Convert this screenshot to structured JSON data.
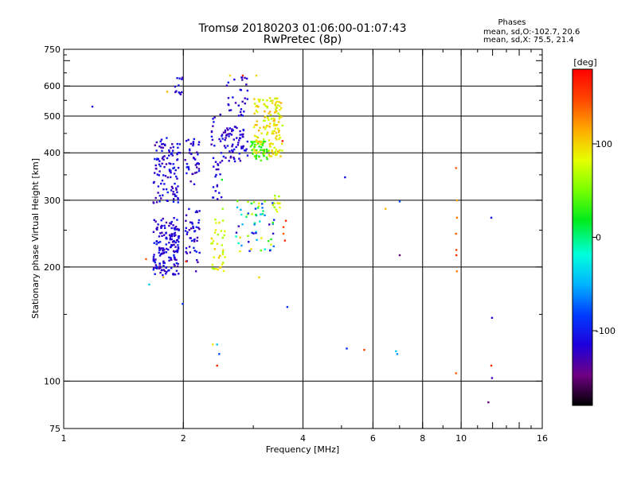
{
  "header": {
    "title_line1": "Tromsø 20180203 01:06:00-01:07:43",
    "title_line2": "RwPretec (8p)"
  },
  "phases_box": {
    "heading": "Phases",
    "line_o": "mean, sd,O:-102.7, 20.6",
    "line_x": "mean, sd,X:  75.5, 21.4"
  },
  "colorbar": {
    "label": "[deg]",
    "range": [
      -180,
      180
    ],
    "ticks": [
      {
        "value": 100,
        "label": "100"
      },
      {
        "value": 0,
        "label": "0"
      },
      {
        "value": -100,
        "label": "-100"
      }
    ]
  },
  "chart_data": {
    "type": "scatter",
    "title": "Tromsø 20180203 01:06:00-01:07:43",
    "subtitle": "RwPretec (8p)",
    "xlabel": "Frequency [MHz]",
    "ylabel": "Stationary phase Virtual Height [km]",
    "x_scale": "log",
    "y_scale": "log",
    "xlim": [
      1,
      16
    ],
    "ylim": [
      75,
      750
    ],
    "x_ticks": [
      {
        "value": 1,
        "label": "1"
      },
      {
        "value": 2,
        "label": "2"
      },
      {
        "value": 4,
        "label": "4"
      },
      {
        "value": 6,
        "label": "6"
      },
      {
        "value": 8,
        "label": "8"
      },
      {
        "value": 10,
        "label": "10"
      },
      {
        "value": 16,
        "label": "16"
      }
    ],
    "y_ticks": [
      {
        "value": 75,
        "label": "75"
      },
      {
        "value": 100,
        "label": "100"
      },
      {
        "value": 200,
        "label": "200"
      },
      {
        "value": 300,
        "label": "300"
      },
      {
        "value": 400,
        "label": "400"
      },
      {
        "value": 500,
        "label": "500"
      },
      {
        "value": 600,
        "label": "600"
      },
      {
        "value": 750,
        "label": "750"
      }
    ],
    "grid_x": [
      2,
      4,
      6,
      8,
      10
    ],
    "grid_y": [
      100,
      200,
      300,
      400,
      500,
      600
    ],
    "color_quantity": "phase [deg]",
    "clusters": [
      {
        "f": [
          1.68,
          1.95
        ],
        "h": [
          190,
          270
        ],
        "phase": [
          -135,
          -95
        ],
        "n": 170
      },
      {
        "f": [
          1.68,
          1.96
        ],
        "h": [
          295,
          440
        ],
        "phase": [
          -135,
          -95
        ],
        "n": 110
      },
      {
        "f": [
          2.02,
          2.2
        ],
        "h": [
          205,
          285
        ],
        "phase": [
          -135,
          -95
        ],
        "n": 45
      },
      {
        "f": [
          2.02,
          2.2
        ],
        "h": [
          330,
          440
        ],
        "phase": [
          -135,
          -95
        ],
        "n": 40
      },
      {
        "f": [
          1.9,
          2.0
        ],
        "h": [
          540,
          640
        ],
        "phase": [
          -130,
          -100
        ],
        "n": 12
      },
      {
        "f": [
          2.35,
          2.55
        ],
        "h": [
          195,
          270
        ],
        "phase": [
          60,
          105
        ],
        "n": 35
      },
      {
        "f": [
          2.35,
          2.5
        ],
        "h": [
          300,
          510
        ],
        "phase": [
          -130,
          -100
        ],
        "n": 35
      },
      {
        "f": [
          2.5,
          2.9
        ],
        "h": [
          380,
          470
        ],
        "phase": [
          -135,
          -100
        ],
        "n": 70
      },
      {
        "f": [
          2.55,
          2.9
        ],
        "h": [
          500,
          640
        ],
        "phase": [
          -130,
          -100
        ],
        "n": 30
      },
      {
        "f": [
          2.7,
          3.4
        ],
        "h": [
          220,
          300
        ],
        "phase": [
          -130,
          110
        ],
        "n": 60
      },
      {
        "f": [
          3.0,
          3.55
        ],
        "h": [
          390,
          560
        ],
        "phase": [
          65,
          115
        ],
        "n": 160
      },
      {
        "f": [
          2.95,
          3.25
        ],
        "h": [
          380,
          430
        ],
        "phase": [
          15,
          45
        ],
        "n": 35
      },
      {
        "f": [
          3.35,
          3.5
        ],
        "h": [
          280,
          310
        ],
        "phase": [
          50,
          90
        ],
        "n": 12
      }
    ],
    "points": [
      {
        "x": 1.18,
        "y": 530,
        "phase": -120
      },
      {
        "x": 1.61,
        "y": 210,
        "phase": 140
      },
      {
        "x": 1.64,
        "y": 180,
        "phase": -40
      },
      {
        "x": 1.78,
        "y": 188,
        "phase": 110
      },
      {
        "x": 1.82,
        "y": 580,
        "phase": 110
      },
      {
        "x": 1.99,
        "y": 160,
        "phase": -90
      },
      {
        "x": 2.03,
        "y": 207,
        "phase": 160
      },
      {
        "x": 2.15,
        "y": 195,
        "phase": -130
      },
      {
        "x": 2.37,
        "y": 125,
        "phase": 90
      },
      {
        "x": 2.43,
        "y": 125,
        "phase": -40
      },
      {
        "x": 2.43,
        "y": 110,
        "phase": 160
      },
      {
        "x": 2.46,
        "y": 118,
        "phase": -80
      },
      {
        "x": 2.51,
        "y": 285,
        "phase": 60
      },
      {
        "x": 2.5,
        "y": 340,
        "phase": 20
      },
      {
        "x": 2.62,
        "y": 640,
        "phase": 100
      },
      {
        "x": 2.82,
        "y": 640,
        "phase": 160
      },
      {
        "x": 3.05,
        "y": 640,
        "phase": 100
      },
      {
        "x": 3.1,
        "y": 188,
        "phase": 100
      },
      {
        "x": 3.55,
        "y": 430,
        "phase": 170
      },
      {
        "x": 3.57,
        "y": 255,
        "phase": 150
      },
      {
        "x": 3.57,
        "y": 245,
        "phase": 140
      },
      {
        "x": 3.6,
        "y": 235,
        "phase": 160
      },
      {
        "x": 3.62,
        "y": 265,
        "phase": 160
      },
      {
        "x": 3.65,
        "y": 157,
        "phase": -90
      },
      {
        "x": 5.1,
        "y": 345,
        "phase": -110
      },
      {
        "x": 5.15,
        "y": 122,
        "phase": -90
      },
      {
        "x": 5.7,
        "y": 121,
        "phase": 150
      },
      {
        "x": 6.45,
        "y": 285,
        "phase": 110
      },
      {
        "x": 6.85,
        "y": 120,
        "phase": -40
      },
      {
        "x": 6.9,
        "y": 118,
        "phase": -60
      },
      {
        "x": 7.0,
        "y": 298,
        "phase": -80
      },
      {
        "x": 7.0,
        "y": 215,
        "phase": -150
      },
      {
        "x": 9.7,
        "y": 365,
        "phase": 140
      },
      {
        "x": 9.75,
        "y": 300,
        "phase": 120
      },
      {
        "x": 9.75,
        "y": 270,
        "phase": 130
      },
      {
        "x": 9.7,
        "y": 245,
        "phase": 140
      },
      {
        "x": 9.72,
        "y": 222,
        "phase": 150
      },
      {
        "x": 9.72,
        "y": 215,
        "phase": 160
      },
      {
        "x": 9.75,
        "y": 195,
        "phase": 130
      },
      {
        "x": 9.7,
        "y": 105,
        "phase": 140
      },
      {
        "x": 11.9,
        "y": 270,
        "phase": -110
      },
      {
        "x": 11.95,
        "y": 147,
        "phase": -110
      },
      {
        "x": 11.9,
        "y": 110,
        "phase": 160
      },
      {
        "x": 11.95,
        "y": 102,
        "phase": -130
      },
      {
        "x": 11.7,
        "y": 88,
        "phase": -150
      }
    ]
  }
}
